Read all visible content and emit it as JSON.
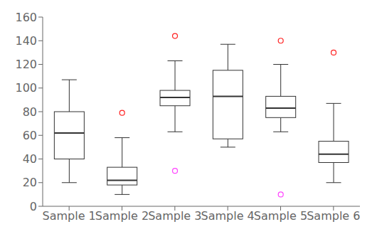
{
  "chart_data": {
    "type": "box",
    "categories": [
      "Sample 1",
      "Sample 2",
      "Sample 3",
      "Sample 4",
      "Sample 5",
      "Sample 6"
    ],
    "boxes": [
      {
        "med": 62,
        "q1": 40,
        "q3": 80,
        "whislo": 20,
        "whishi": 107
      },
      {
        "med": 22,
        "q1": 18,
        "q3": 33,
        "whislo": 10,
        "whishi": 58
      },
      {
        "med": 92,
        "q1": 85,
        "q3": 98,
        "whislo": 63,
        "whishi": 123
      },
      {
        "med": 93,
        "q1": 57,
        "q3": 115,
        "whislo": 50,
        "whishi": 137
      },
      {
        "med": 83,
        "q1": 75,
        "q3": 93,
        "whislo": 63,
        "whishi": 120
      },
      {
        "med": 44,
        "q1": 37,
        "q3": 55,
        "whislo": 20,
        "whishi": 87
      }
    ],
    "outliers": [
      {
        "color": "#ff2020",
        "values": [
          [],
          [
            79
          ],
          [
            144
          ],
          [],
          [
            140
          ],
          [
            130
          ]
        ]
      },
      {
        "color": "#ff40ff",
        "values": [
          [],
          [],
          [
            30
          ],
          [],
          [
            10
          ],
          []
        ]
      }
    ],
    "ylim": [
      0,
      160
    ],
    "yticks": [
      0,
      20,
      40,
      60,
      80,
      100,
      120,
      140,
      160
    ],
    "grid": false
  }
}
